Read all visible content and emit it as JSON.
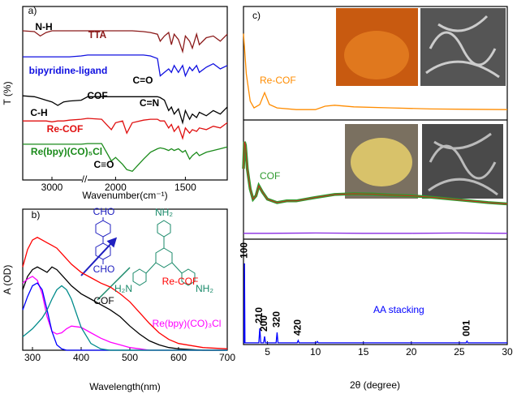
{
  "chart_data": [
    {
      "type": "line",
      "panel_label": "a)",
      "x_label": "Wavenumber(cm⁻¹)",
      "y_label": "T (%)",
      "xlim": [
        3250,
        1200
      ],
      "axis_break": [
        2750,
        2200
      ],
      "ylim": [
        0,
        100
      ],
      "xticks": [
        3000,
        2000,
        1500
      ],
      "x": [
        3250,
        3150,
        3100,
        3050,
        3000,
        2950,
        2900,
        2850,
        2750,
        2200,
        2100,
        2030,
        2000,
        1950,
        1920,
        1880,
        1800,
        1750,
        1700,
        1680,
        1650,
        1620,
        1600,
        1580,
        1550,
        1520,
        1500,
        1470,
        1450,
        1420,
        1400,
        1350,
        1300,
        1250,
        1200
      ],
      "series": [
        {
          "name": "TTA",
          "color": "#8b1a1a",
          "values": [
            86,
            85.5,
            83,
            85,
            86,
            86,
            86,
            86,
            86,
            86,
            86,
            86,
            86,
            86,
            86,
            86,
            85.5,
            85,
            84,
            80,
            83,
            85,
            78,
            84,
            81,
            74,
            83,
            80,
            76,
            84,
            78,
            82,
            83,
            80,
            84
          ]
        },
        {
          "name": "bipyridine-ligand",
          "color": "#1010e0",
          "values": [
            71,
            71,
            71,
            71,
            71,
            71,
            71,
            71,
            71.5,
            72,
            72,
            72,
            72,
            72,
            72,
            72,
            72,
            71.5,
            70,
            60,
            62,
            64,
            62,
            66,
            62,
            66,
            60,
            65,
            63,
            66,
            62,
            65,
            67,
            64,
            66
          ]
        },
        {
          "name": "COF",
          "color": "#000000",
          "values": [
            48.5,
            48,
            47,
            46,
            45,
            43,
            45,
            45.5,
            46,
            48,
            48,
            48,
            48,
            48,
            48,
            48,
            48,
            48,
            48,
            47.5,
            46,
            40,
            42,
            38,
            41,
            33,
            40,
            35,
            38,
            36,
            39,
            37,
            40,
            38,
            42
          ]
        },
        {
          "name": "Re-COF",
          "color": "#e01010",
          "values": [
            34,
            34,
            34,
            34,
            33.5,
            34,
            34,
            34.5,
            35,
            35.5,
            35,
            29,
            33,
            34,
            27,
            33,
            34.5,
            35,
            35,
            34,
            34,
            30,
            32,
            28,
            31,
            24,
            30,
            27,
            29,
            28,
            30,
            29,
            31,
            30,
            33
          ]
        },
        {
          "name": "Re(bpy)(CO)₅Cl",
          "color": "#1a8a1a",
          "values": [
            20.6,
            20.6,
            20.6,
            20.6,
            20.6,
            20.6,
            20.6,
            20.6,
            20.6,
            21,
            21,
            11,
            13,
            9,
            6,
            5,
            12,
            16,
            18,
            18.5,
            18,
            17,
            18,
            17,
            18,
            16,
            17,
            12,
            14,
            16,
            14,
            16,
            17,
            18,
            19
          ]
        }
      ],
      "annotations": [
        "N-H",
        "C=O",
        "C-H",
        "C=N",
        "C≡O"
      ]
    },
    {
      "type": "line",
      "panel_label": "b)",
      "x_label": "Wavelength(nm)",
      "y_label": "A (OD)",
      "xlim": [
        280,
        700
      ],
      "ylim": [
        0,
        1.05
      ],
      "xticks": [
        300,
        400,
        500,
        600,
        700
      ],
      "x": [
        280,
        290,
        300,
        310,
        320,
        330,
        340,
        350,
        360,
        370,
        380,
        400,
        420,
        440,
        460,
        480,
        500,
        520,
        540,
        560,
        580,
        600,
        650,
        700
      ],
      "series": [
        {
          "name": "Re-COF",
          "color": "#ff0000",
          "values": [
            0.62,
            0.75,
            0.82,
            0.84,
            0.82,
            0.8,
            0.78,
            0.76,
            0.72,
            0.68,
            0.64,
            0.58,
            0.54,
            0.5,
            0.47,
            0.42,
            0.36,
            0.28,
            0.2,
            0.13,
            0.08,
            0.05,
            0.02,
            0.01
          ]
        },
        {
          "name": "COF",
          "color": "#000000",
          "values": [
            0.45,
            0.55,
            0.6,
            0.62,
            0.6,
            0.58,
            0.62,
            0.6,
            0.56,
            0.52,
            0.48,
            0.42,
            0.38,
            0.34,
            0.3,
            0.25,
            0.18,
            0.12,
            0.07,
            0.04,
            0.02,
            0.01,
            0,
            0
          ]
        },
        {
          "name": "Re(bpy)(CO)₃Cl",
          "color": "#ff00ff",
          "values": [
            0.5,
            0.53,
            0.55,
            0.52,
            0.42,
            0.25,
            0.14,
            0.12,
            0.13,
            0.16,
            0.18,
            0.17,
            0.13,
            0.09,
            0.06,
            0.04,
            0.02,
            0.01,
            0,
            0,
            0,
            0,
            0,
            0
          ]
        },
        {
          "color": "#0000ff",
          "values": [
            0.3,
            0.4,
            0.48,
            0.5,
            0.45,
            0.3,
            0.14,
            0.04,
            0.01,
            0,
            0,
            0,
            0,
            0,
            0,
            0,
            0,
            0,
            0,
            0,
            0,
            0,
            0,
            0
          ]
        },
        {
          "color": "#008b8b",
          "values": [
            0.1,
            0.13,
            0.16,
            0.2,
            0.24,
            0.3,
            0.38,
            0.45,
            0.48,
            0.45,
            0.38,
            0.17,
            0.05,
            0.01,
            0,
            0,
            0,
            0,
            0,
            0,
            0,
            0,
            0,
            0
          ]
        }
      ],
      "annotations": [
        "CHO",
        "CHO",
        "NH₂",
        "H₂N",
        "NH₂"
      ]
    },
    {
      "type": "line",
      "panel_label": "c)",
      "x_label": "2θ (degree)",
      "xlim": [
        2.5,
        30
      ],
      "ylim": [
        0,
        100
      ],
      "xticks": [
        5,
        10,
        15,
        20,
        25,
        30
      ],
      "series": [
        {
          "name": "Re-COF",
          "color": "#ff8c00",
          "x": [
            2.5,
            2.6,
            2.8,
            3.2,
            3.6,
            4.2,
            4.7,
            5.2,
            6,
            8,
            10,
            11,
            12,
            14,
            18,
            22,
            26,
            30
          ],
          "values": [
            92,
            88,
            80,
            72,
            70,
            71,
            74.5,
            71,
            70,
            69.5,
            69.5,
            70.5,
            70.8,
            70.3,
            70,
            69.7,
            69.6,
            69.5
          ]
        },
        {
          "name": "COF",
          "color": "#2e9a2e",
          "edge_color": "#e02020",
          "x": [
            2.5,
            2.6,
            2.7,
            2.9,
            3.2,
            3.5,
            3.8,
            4.1,
            4.5,
            5,
            6,
            7,
            8,
            10,
            12,
            14,
            16,
            18,
            20,
            22,
            25,
            28,
            30
          ],
          "values": [
            52,
            60,
            59,
            52,
            46,
            43,
            44,
            47,
            45,
            43,
            42,
            42.5,
            42.5,
            43.5,
            44.4,
            44.6,
            44.5,
            44.2,
            44,
            43.6,
            42.8,
            42,
            41.6
          ]
        },
        {
          "color": "#8a2be2",
          "x": [
            2.5,
            5,
            10,
            15,
            20,
            25,
            30
          ],
          "values": [
            32.9,
            32.9,
            33,
            32.9,
            32.9,
            33,
            32.9
          ]
        },
        {
          "name": "AA stacking",
          "color": "#0000ff",
          "x": [
            2.5,
            2.55,
            2.6,
            2.65,
            4.1,
            4.2,
            4.3,
            4.6,
            4.7,
            4.8,
            5.9,
            6.0,
            6.1,
            8.1,
            8.2,
            8.3,
            10.1,
            10.2,
            10.3,
            25.7,
            25.8,
            25.9,
            30
          ],
          "values": [
            0.5,
            0.5,
            24,
            0.5,
            0.5,
            4.8,
            0.5,
            0.5,
            2.4,
            0.5,
            0.5,
            3.6,
            0.5,
            0.5,
            1.2,
            0.5,
            0.5,
            0.9,
            0.5,
            0.5,
            1,
            0.5,
            0.5
          ]
        }
      ],
      "peaks": [
        {
          "label": "100",
          "x": 2.6
        },
        {
          "label": "210",
          "x": 4.2
        },
        {
          "label": "200",
          "x": 4.7
        },
        {
          "label": "320",
          "x": 6.0
        },
        {
          "label": "420",
          "x": 8.2
        },
        {
          "label": "001",
          "x": 25.8
        }
      ]
    }
  ]
}
